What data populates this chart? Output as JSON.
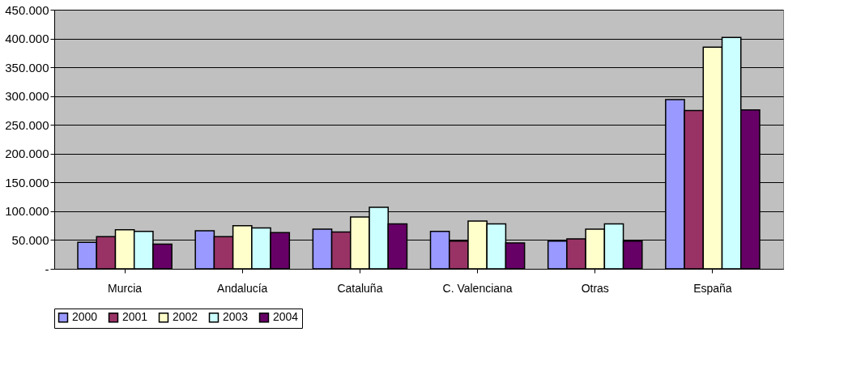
{
  "chart_data": {
    "type": "bar",
    "categories": [
      "Murcia",
      "Andalucía",
      "Cataluña",
      "C. Valenciana",
      "Otras",
      "España"
    ],
    "series": [
      {
        "name": "2000",
        "color": "#9999ff",
        "values": [
          46000,
          66000,
          69000,
          65000,
          48000,
          294000
        ]
      },
      {
        "name": "2001",
        "color": "#993366",
        "values": [
          56000,
          56000,
          64000,
          48000,
          52000,
          275000
        ]
      },
      {
        "name": "2002",
        "color": "#ffffcc",
        "values": [
          68000,
          75000,
          90000,
          83000,
          69000,
          385000
        ]
      },
      {
        "name": "2003",
        "color": "#ccffff",
        "values": [
          65000,
          71000,
          107000,
          78000,
          78000,
          402000
        ]
      },
      {
        "name": "2004",
        "color": "#660066",
        "values": [
          43000,
          63000,
          78000,
          45000,
          48000,
          276000
        ]
      }
    ],
    "ylim": [
      0,
      450000
    ],
    "yticks": [
      {
        "value": 0,
        "label": "-"
      },
      {
        "value": 50000,
        "label": "50.000"
      },
      {
        "value": 100000,
        "label": "100.000"
      },
      {
        "value": 150000,
        "label": "150.000"
      },
      {
        "value": 200000,
        "label": "200.000"
      },
      {
        "value": 250000,
        "label": "250.000"
      },
      {
        "value": 300000,
        "label": "300.000"
      },
      {
        "value": 350000,
        "label": "350.000"
      },
      {
        "value": 400000,
        "label": "400.000"
      },
      {
        "value": 450000,
        "label": "450.000"
      }
    ],
    "grid": "y",
    "legend": "bottom"
  }
}
